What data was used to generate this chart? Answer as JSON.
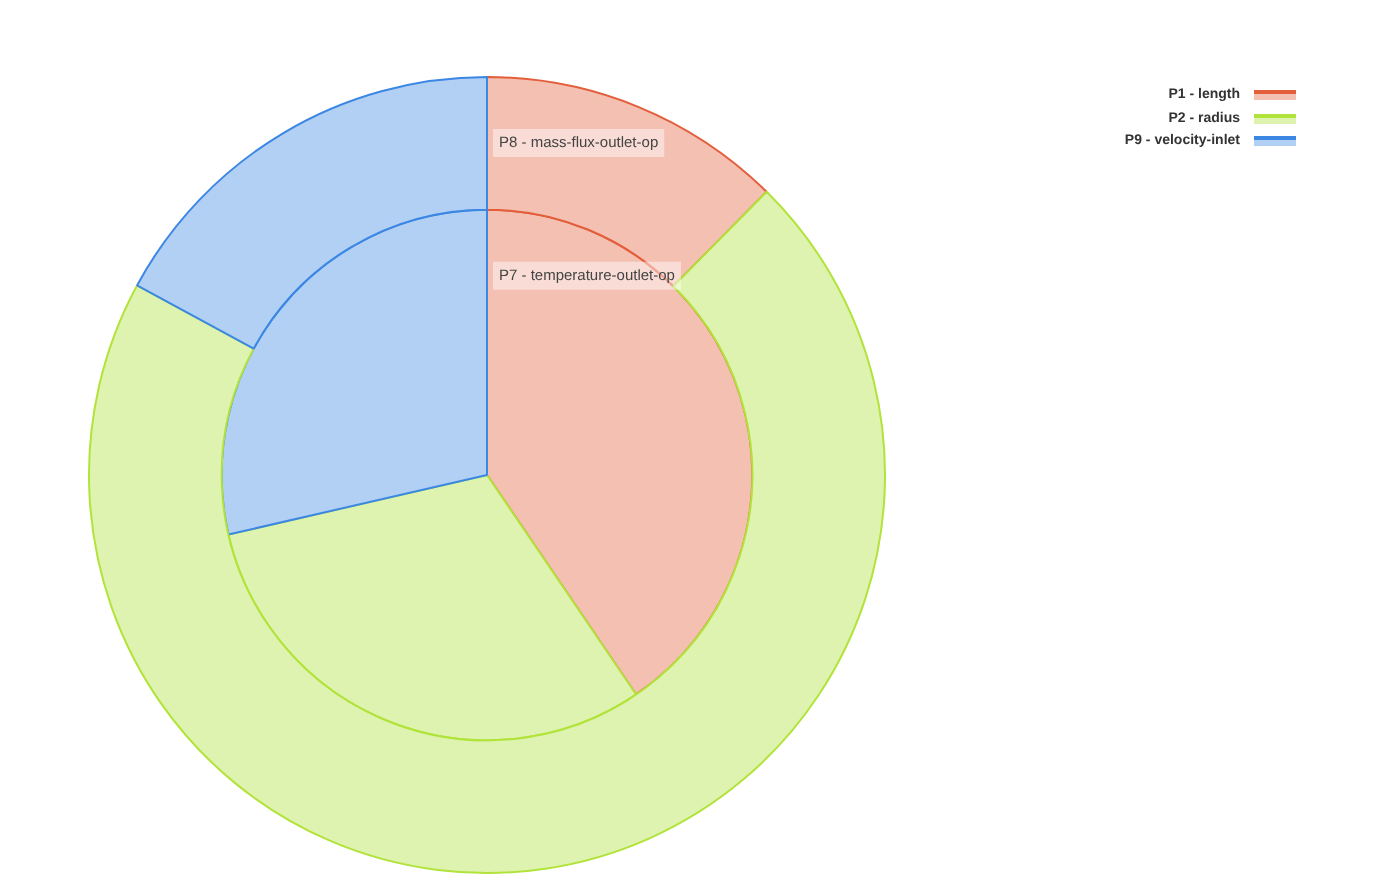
{
  "chart_data": {
    "type": "pie",
    "categories": [
      "P1 - length",
      "P2 - radius",
      "P9 - velocity-inlet"
    ],
    "colors": [
      "#f4c0b2",
      "#dff3b0",
      "#b2d0f4"
    ],
    "series": [
      {
        "name": "P8 - mass-flux-outlet-op",
        "values": [
          12.4,
          70.5,
          17.1
        ]
      },
      {
        "name": "P7 - temperature-outlet-op",
        "values": [
          40.5,
          30.9,
          28.6
        ]
      }
    ],
    "legend": "top right"
  }
}
